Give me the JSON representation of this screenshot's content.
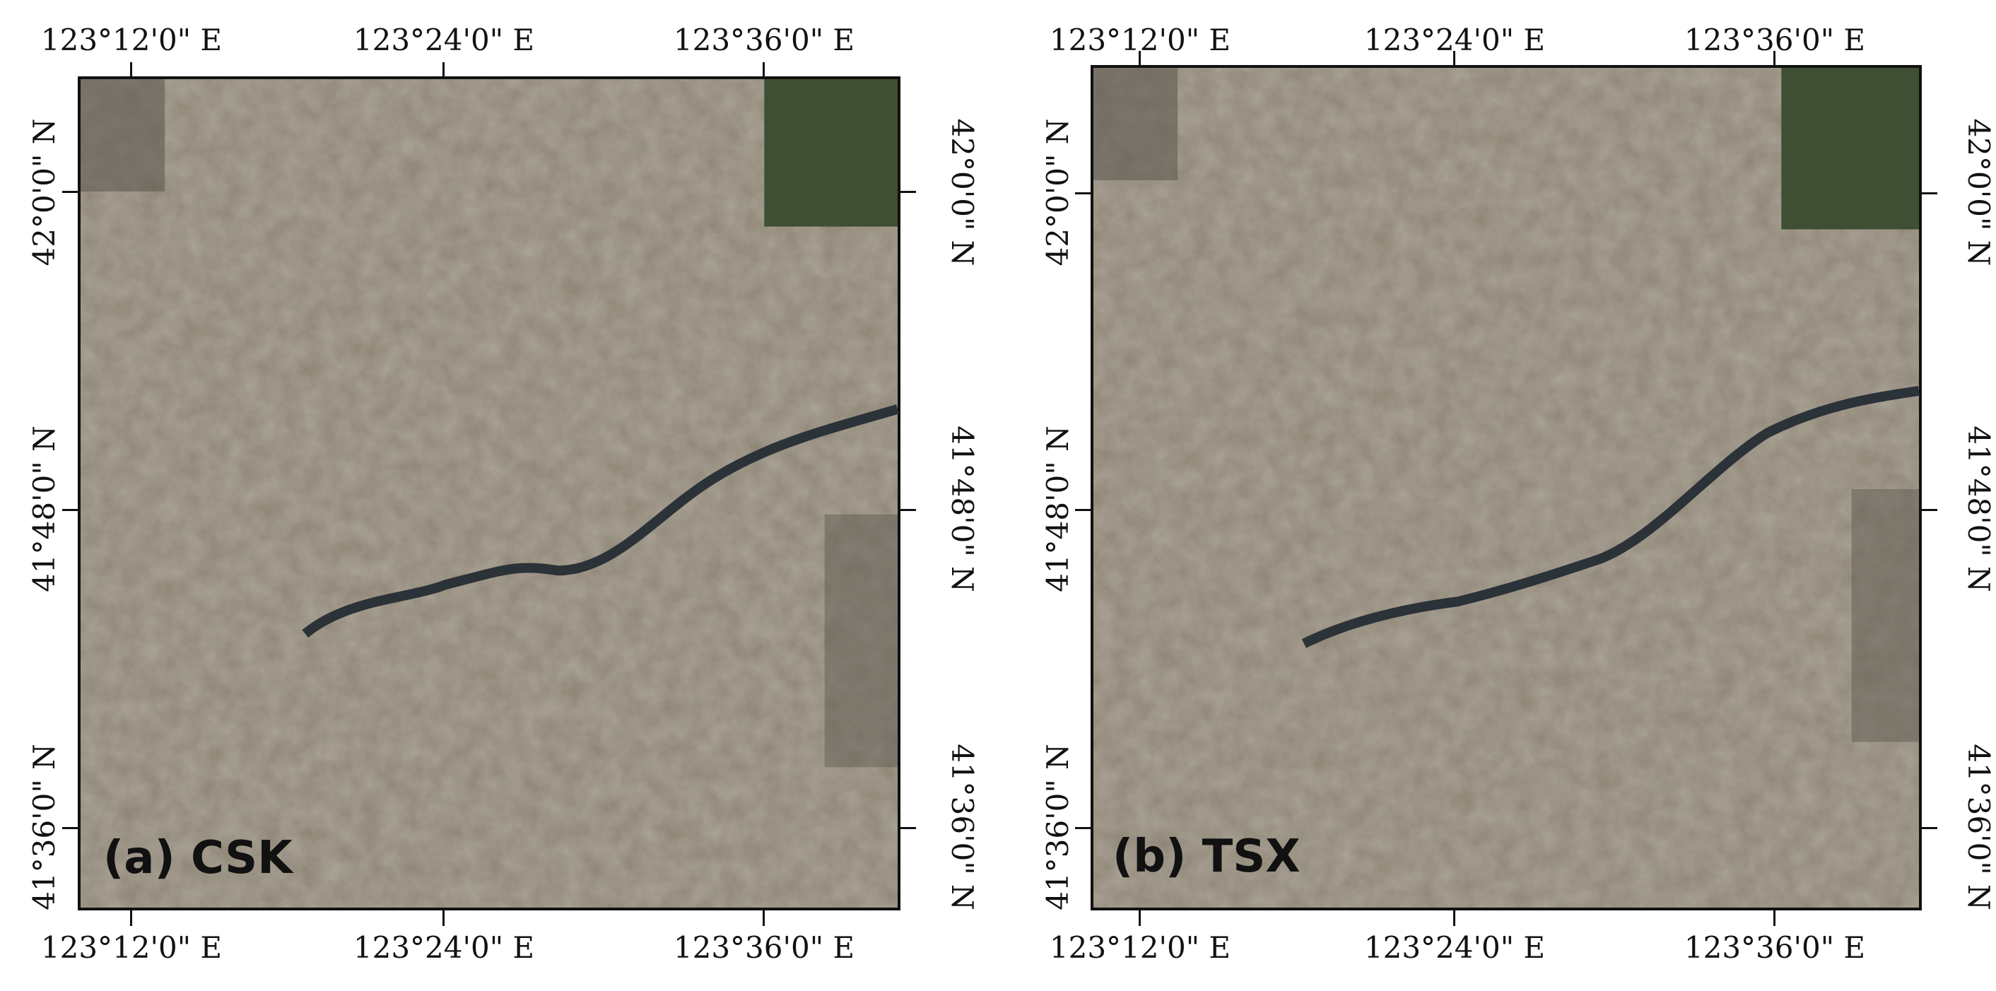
{
  "panels": [
    {
      "label": "(a) CSK",
      "lon_labels_top": [
        "123°12'0\" E",
        "123°24'0\" E",
        "123°36'0\" E"
      ],
      "lon_labels_bottom": [
        "123°12'0\" E",
        "123°24'0\" E",
        "123°36'0\" E"
      ],
      "lat_labels_left": [
        "42°0'0\" N",
        "41°48'0\" N",
        "41°36'0\" N"
      ],
      "lat_labels_right": [
        "42°0'0\" N",
        "41°48'0\" N",
        "41°36'0\" N"
      ]
    },
    {
      "label": "(b) TSX",
      "lon_labels_top": [
        "123°12'0\" E",
        "123°24'0\" E",
        "123°36'0\" E"
      ],
      "lon_labels_bottom": [
        "123°12'0\" E",
        "123°24'0\" E",
        "123°36'0\" E"
      ],
      "lat_labels_left": [
        "42°0'0\" N",
        "41°48'0\" N",
        "41°36'0\" N"
      ],
      "lat_labels_right": [
        "42°0'0\" N",
        "41°48'0\" N",
        "41°36'0\" N"
      ]
    }
  ],
  "colors": {
    "basemap": "#8d8474",
    "basemap_dark": "#5f5a52",
    "vegetation": "#3f4f34",
    "river": "#2b3238",
    "deform_low": "#1e3fd6",
    "deform_mid_low": "#3bb2f0",
    "deform_mid": "#7ef0b8",
    "deform_mid_high": "#f2e640",
    "deform_high": "#e0401a"
  }
}
